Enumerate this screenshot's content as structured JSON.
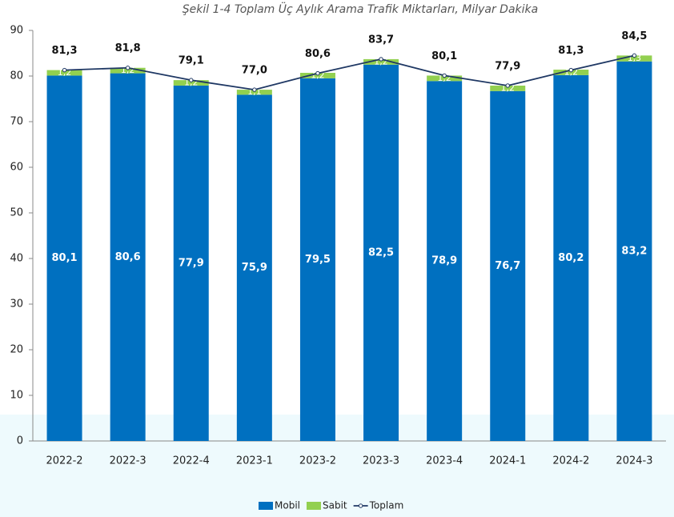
{
  "chart_data": {
    "type": "bar",
    "stacked": true,
    "title": "Şekil 1-4 Toplam Üç Aylık Arama Trafik Miktarları, Milyar Dakika",
    "categories": [
      "2022-2",
      "2022-3",
      "2022-4",
      "2023-1",
      "2023-2",
      "2023-3",
      "2023-4",
      "2024-1",
      "2024-2",
      "2024-3"
    ],
    "series": [
      {
        "name": "Mobil",
        "color": "#0070c0",
        "values": [
          80.1,
          80.6,
          77.9,
          75.9,
          79.5,
          82.5,
          78.9,
          76.7,
          80.2,
          83.2
        ],
        "value_labels": [
          "80,1",
          "80,6",
          "77,9",
          "75,9",
          "79,5",
          "82,5",
          "78,9",
          "76,7",
          "80,2",
          "83,2"
        ]
      },
      {
        "name": "Sabit",
        "color": "#92d050",
        "values": [
          1.2,
          1.2,
          1.2,
          1.1,
          1.2,
          1.2,
          1.2,
          1.2,
          1.2,
          1.3
        ],
        "value_labels": [
          "1,2",
          "1,2",
          "1,2",
          "1,1",
          "1,2",
          "1,2",
          "1,2",
          "1,2",
          "1,2",
          "1,3"
        ]
      },
      {
        "name": "Toplam",
        "type": "line",
        "color": "#1f3864",
        "values": [
          81.3,
          81.8,
          79.1,
          77.0,
          80.6,
          83.7,
          80.1,
          77.9,
          81.3,
          84.5
        ],
        "value_labels": [
          "81,3",
          "81,8",
          "79,1",
          "77,0",
          "80,6",
          "83,7",
          "80,1",
          "77,9",
          "81,3",
          "84,5"
        ]
      }
    ],
    "ylim": [
      0,
      90
    ],
    "yticks": [
      0,
      10,
      20,
      30,
      40,
      50,
      60,
      70,
      80,
      90
    ],
    "grid": false
  }
}
